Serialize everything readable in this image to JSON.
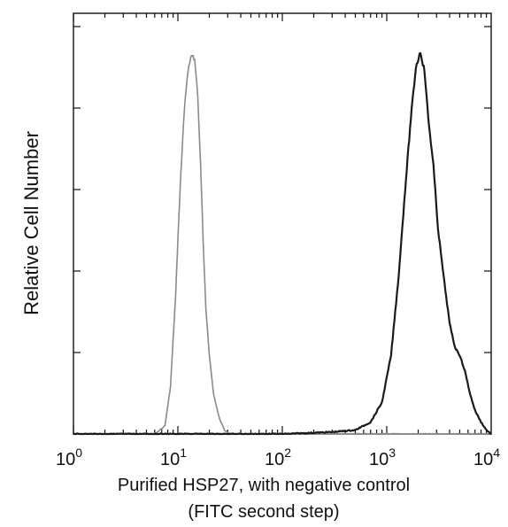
{
  "chart_data": {
    "type": "line",
    "title": "",
    "xlabel": "Purified HSP27, with negative control",
    "xlabel_line2": "(FITC second step)",
    "ylabel": "Relative Cell Number",
    "xscale": "log",
    "xlim": [
      1,
      10000
    ],
    "ylim": [
      0,
      1.0
    ],
    "grid": false,
    "x_ticks": [
      {
        "value": 1,
        "base": "10",
        "exp": "0"
      },
      {
        "value": 10,
        "base": "10",
        "exp": "1"
      },
      {
        "value": 100,
        "base": "10",
        "exp": "2"
      },
      {
        "value": 1000,
        "base": "10",
        "exp": "3"
      },
      {
        "value": 10000,
        "base": "10",
        "exp": "4"
      }
    ],
    "y_ticks_count": 5,
    "series": [
      {
        "role": "negative-control",
        "color": "#8a8a8a",
        "x": [
          1,
          3,
          6,
          7.5,
          8.5,
          9.5,
          10.5,
          11.5,
          12.5,
          13.5,
          14.5,
          15.5,
          16.5,
          17.5,
          18.5,
          20,
          22,
          25,
          28,
          32,
          40,
          100,
          1000,
          10000
        ],
        "y": [
          0,
          0,
          0.0,
          0.02,
          0.12,
          0.35,
          0.62,
          0.82,
          0.92,
          0.96,
          0.95,
          0.86,
          0.68,
          0.48,
          0.32,
          0.2,
          0.1,
          0.04,
          0.01,
          0,
          0,
          0,
          0,
          0
        ]
      },
      {
        "role": "hsp27-stained",
        "color": "#1a1a1a",
        "x": [
          1,
          10,
          100,
          300,
          500,
          700,
          900,
          1100,
          1300,
          1500,
          1700,
          1900,
          2100,
          2300,
          2500,
          2800,
          3100,
          3500,
          4000,
          4500,
          5000,
          5600,
          6300,
          7000,
          8000,
          9000,
          10000
        ],
        "y": [
          0,
          0,
          0,
          0.005,
          0.01,
          0.03,
          0.08,
          0.2,
          0.4,
          0.62,
          0.8,
          0.93,
          0.97,
          0.92,
          0.8,
          0.68,
          0.52,
          0.4,
          0.28,
          0.22,
          0.2,
          0.16,
          0.1,
          0.06,
          0.03,
          0.01,
          0
        ]
      }
    ]
  }
}
